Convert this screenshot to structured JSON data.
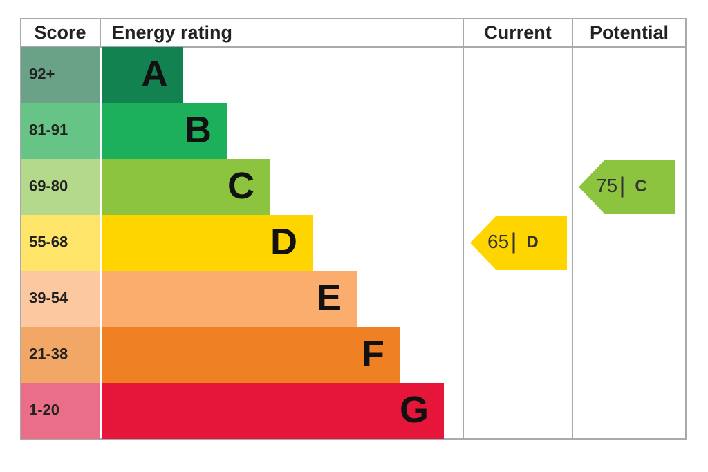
{
  "header": {
    "score": "Score",
    "rating": "Energy rating",
    "current": "Current",
    "potential": "Potential"
  },
  "rows": [
    {
      "score": "92+",
      "letter": "A",
      "color": "#128250",
      "score_color": "#6aa288"
    },
    {
      "score": "81-91",
      "letter": "B",
      "color": "#1db05a",
      "score_color": "#66c487"
    },
    {
      "score": "69-80",
      "letter": "C",
      "color": "#8cc43f",
      "score_color": "#b4d98a"
    },
    {
      "score": "55-68",
      "letter": "D",
      "color": "#ffd500",
      "score_color": "#ffe46a"
    },
    {
      "score": "39-54",
      "letter": "E",
      "color": "#fbad6e",
      "score_color": "#fcc8a0"
    },
    {
      "score": "21-38",
      "letter": "F",
      "color": "#ef8024",
      "score_color": "#f3a767"
    },
    {
      "score": "1-20",
      "letter": "G",
      "color": "#e6163b",
      "score_color": "#ea6e88"
    }
  ],
  "current": {
    "score": "65",
    "rating": "D"
  },
  "potential": {
    "score": "75",
    "rating": "C"
  }
}
